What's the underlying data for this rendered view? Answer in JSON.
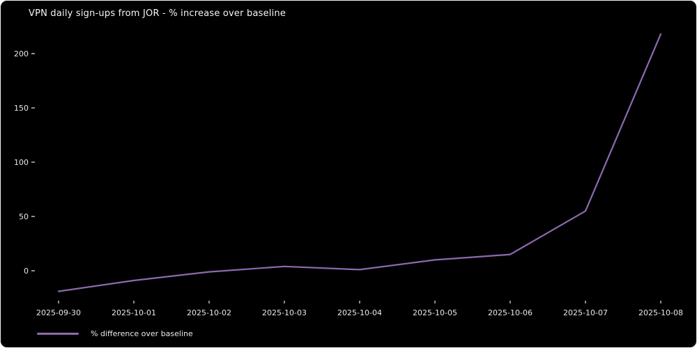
{
  "chart": {
    "title": "VPN daily sign-ups from JOR - % increase over baseline",
    "legend_label": "% difference over baseline",
    "colors": {
      "background": "#000000",
      "line": "#8d6ab0",
      "tick_text": "#e8e8e8",
      "title_text": "#f5f5f5",
      "frame_border": "#f2f2f2"
    }
  },
  "chart_data": {
    "type": "line",
    "title": "VPN daily sign-ups from JOR - % increase over baseline",
    "x": [
      "2025-09-30",
      "2025-10-01",
      "2025-10-02",
      "2025-10-03",
      "2025-10-04",
      "2025-10-05",
      "2025-10-06",
      "2025-10-07",
      "2025-10-08"
    ],
    "series": [
      {
        "name": "% difference over baseline",
        "values": [
          -19,
          -9,
          -1,
          4,
          1,
          10,
          15,
          55,
          218
        ]
      }
    ],
    "xlabel": "",
    "ylabel": "",
    "yticks": [
      0,
      50,
      100,
      150,
      200
    ],
    "ylim": [
      -27,
      230
    ],
    "grid": false,
    "legend_position": "lower-left",
    "line_color": "#8d6ab0"
  }
}
